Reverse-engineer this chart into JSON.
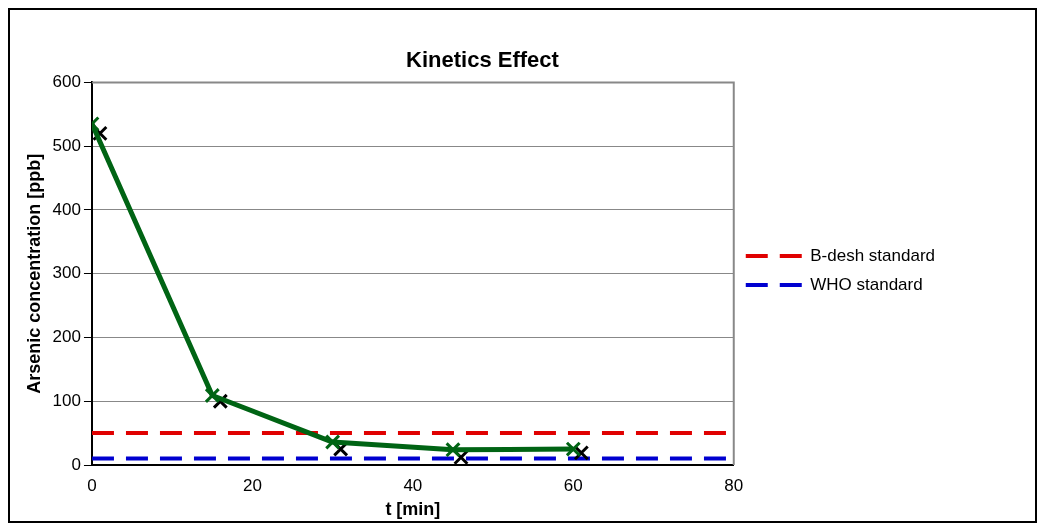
{
  "chart_data": {
    "type": "line",
    "title": "Kinetics Effect",
    "xlabel": "t [min]",
    "ylabel": "Arsenic concentration [ppb]",
    "xlim": [
      0,
      80
    ],
    "xticks": [
      0,
      20,
      40,
      60,
      80
    ],
    "ylim": [
      0,
      600
    ],
    "yticks": [
      0,
      100,
      200,
      300,
      400,
      500,
      600
    ],
    "grid": "y",
    "legend": "right",
    "marker": "cross",
    "line_style": "solid",
    "series": [
      {
        "type": "line",
        "color": "#006414",
        "x": [
          0,
          15,
          30,
          45,
          60
        ],
        "values": [
          535,
          109,
          36,
          24,
          25
        ]
      },
      {
        "type": "scatter",
        "color": "#000000",
        "x": [
          1,
          16,
          31,
          46,
          61
        ],
        "values": [
          520,
          100,
          25,
          12,
          19
        ]
      }
    ],
    "ref_lines": [
      {
        "axis": "y",
        "value": 50,
        "label": "B-desh standard",
        "color": "#e00000",
        "line_style": "dashed"
      },
      {
        "axis": "y",
        "value": 10,
        "label": "WHO standard",
        "color": "#0000d0",
        "line_style": "dashed"
      }
    ]
  }
}
